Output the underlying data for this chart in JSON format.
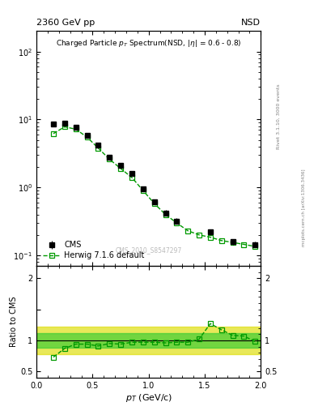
{
  "title_left": "2360 GeV pp",
  "title_right": "NSD",
  "watermark": "CMS_2010_S8547297",
  "cms_pt": [
    0.15,
    0.25,
    0.35,
    0.45,
    0.55,
    0.65,
    0.75,
    0.85,
    0.95,
    1.05,
    1.15,
    1.25,
    1.55,
    1.75,
    1.95
  ],
  "cms_val": [
    8.5,
    8.8,
    7.6,
    5.8,
    4.2,
    2.8,
    2.1,
    1.6,
    0.95,
    0.62,
    0.42,
    0.32,
    0.22,
    0.16,
    0.145
  ],
  "cms_err": [
    0.5,
    0.5,
    0.4,
    0.3,
    0.25,
    0.15,
    0.12,
    0.1,
    0.07,
    0.05,
    0.04,
    0.03,
    0.02,
    0.015,
    0.014
  ],
  "herwig_pt": [
    0.15,
    0.25,
    0.35,
    0.45,
    0.55,
    0.65,
    0.75,
    0.85,
    0.95,
    1.05,
    1.15,
    1.25,
    1.35,
    1.45,
    1.55,
    1.65,
    1.75,
    1.85,
    1.95
  ],
  "herwig_val": [
    6.2,
    7.8,
    7.2,
    5.5,
    3.8,
    2.6,
    1.9,
    1.4,
    0.9,
    0.58,
    0.4,
    0.3,
    0.23,
    0.2,
    0.185,
    0.165,
    0.155,
    0.145,
    0.135
  ],
  "ratio_pt": [
    0.15,
    0.25,
    0.35,
    0.45,
    0.55,
    0.65,
    0.75,
    0.85,
    0.95,
    1.05,
    1.15,
    1.25,
    1.35,
    1.45,
    1.55,
    1.65,
    1.75,
    1.85,
    1.95
  ],
  "ratio_val": [
    0.73,
    0.87,
    0.94,
    0.94,
    0.91,
    0.95,
    0.94,
    0.97,
    0.97,
    0.97,
    0.96,
    0.97,
    0.97,
    1.02,
    1.27,
    1.17,
    1.08,
    1.07,
    0.98
  ],
  "cms_color": "#000000",
  "herwig_color": "#009900",
  "band_inner_color": "#33cc33",
  "band_outer_color": "#dddd00",
  "xlim": [
    0.0,
    2.0
  ],
  "ylim_main": [
    0.07,
    200
  ],
  "ylim_ratio": [
    0.4,
    2.2
  ],
  "yticks_ratio": [
    0.5,
    1.0,
    1.5,
    2.0
  ],
  "yticklabels_ratio": [
    "0.5",
    "1",
    "",
    "2"
  ],
  "xticks": [
    0,
    0.5,
    1.0,
    1.5,
    2.0
  ],
  "rivet_label": "Rivet 3.1.10, 3000 events",
  "mcplots_label": "mcplots.cern.ch [arXiv:1306.3436]"
}
